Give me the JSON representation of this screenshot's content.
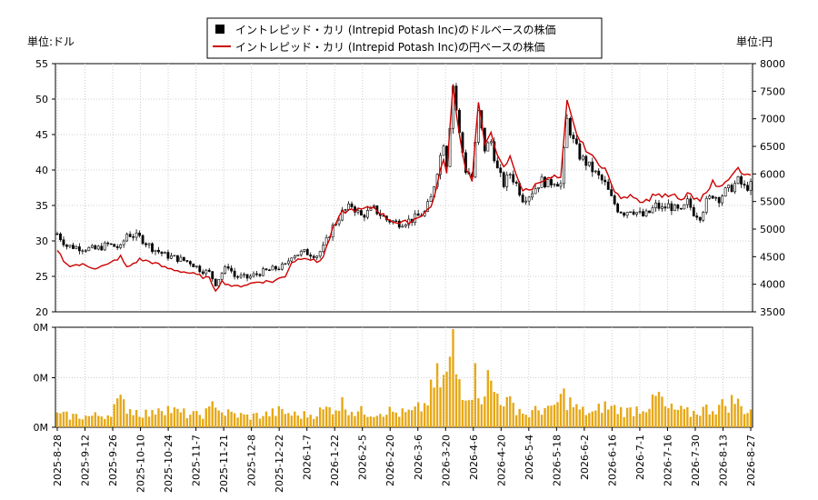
{
  "legend": {
    "items": [
      {
        "label": "イントレピッド・カリ (Intrepid Potash Inc)のドルベースの株価",
        "color": "#000000",
        "marker": "square"
      },
      {
        "label": "イントレピッド・カリ (Intrepid Potash Inc)の円ベースの株価",
        "color": "#cc0000",
        "marker": "line"
      }
    ]
  },
  "chart_data": [
    {
      "type": "line",
      "title": "",
      "left_unit_label": "単位:ドル",
      "right_unit_label": "単位:円",
      "grid": true,
      "legend_position": "top-center",
      "x_tick_labels": [
        "2025-8-28",
        "2025-9-12",
        "2025-9-26",
        "2025-10-10",
        "2025-10-24",
        "2025-11-7",
        "2025-11-21",
        "2025-12-8",
        "2025-12-22",
        "2026-1-7",
        "2026-1-22",
        "2026-2-5",
        "2026-2-20",
        "2026-3-6",
        "2026-3-20",
        "2026-4-6",
        "2026-4-20",
        "2026-5-4",
        "2026-5-18",
        "2026-6-2",
        "2026-6-16",
        "2026-7-1",
        "2026-7-16",
        "2026-7-30",
        "2026-8-13",
        "2026-8-27"
      ],
      "y_left_range": [
        20,
        55
      ],
      "y_left_ticks": [
        "20",
        "25",
        "30",
        "35",
        "40",
        "45",
        "50",
        "55"
      ],
      "y_right_range": [
        3500,
        8000
      ],
      "y_right_ticks": [
        "3500",
        "4000",
        "4500",
        "5000",
        "5500",
        "6000",
        "6500",
        "7000",
        "7500",
        "8000"
      ],
      "series": [
        {
          "color": "#000000",
          "style": "candlestick",
          "axis": "left",
          "keypoints": [
            [
              0,
              31
            ],
            [
              3,
              29.3
            ],
            [
              8,
              29
            ],
            [
              12,
              28.8
            ],
            [
              16,
              29.5
            ],
            [
              20,
              29
            ],
            [
              22,
              31
            ],
            [
              26,
              30.5
            ],
            [
              30,
              29
            ],
            [
              34,
              28
            ],
            [
              38,
              27.5
            ],
            [
              42,
              27
            ],
            [
              45,
              26
            ],
            [
              48,
              25.5
            ],
            [
              50,
              24
            ],
            [
              52,
              25.5
            ],
            [
              54,
              26.5
            ],
            [
              56,
              25
            ],
            [
              60,
              24.8
            ],
            [
              64,
              25.5
            ],
            [
              68,
              26
            ],
            [
              72,
              26.5
            ],
            [
              74,
              28
            ],
            [
              78,
              28.4
            ],
            [
              82,
              28
            ],
            [
              84,
              29
            ],
            [
              87,
              32
            ],
            [
              90,
              34
            ],
            [
              93,
              35
            ],
            [
              96,
              33.5
            ],
            [
              100,
              34.5
            ],
            [
              104,
              33
            ],
            [
              108,
              32.5
            ],
            [
              112,
              33
            ],
            [
              116,
              34
            ],
            [
              118,
              36
            ],
            [
              120,
              40
            ],
            [
              122,
              44
            ],
            [
              123,
              41
            ],
            [
              125,
              52
            ],
            [
              127,
              45
            ],
            [
              129,
              40
            ],
            [
              131,
              39
            ],
            [
              133,
              48
            ],
            [
              135,
              43
            ],
            [
              137,
              44
            ],
            [
              139,
              40
            ],
            [
              141,
              38
            ],
            [
              143,
              39.5
            ],
            [
              145,
              38
            ],
            [
              147,
              36
            ],
            [
              149,
              36.5
            ],
            [
              151,
              37.5
            ],
            [
              153,
              38.5
            ],
            [
              155,
              38
            ],
            [
              157,
              38.5
            ],
            [
              159,
              38
            ],
            [
              161,
              47
            ],
            [
              163,
              44
            ],
            [
              165,
              42
            ],
            [
              167,
              41
            ],
            [
              169,
              40
            ],
            [
              171,
              39
            ],
            [
              173,
              38
            ],
            [
              175,
              36
            ],
            [
              177,
              34.5
            ],
            [
              179,
              34
            ],
            [
              181,
              34.5
            ],
            [
              183,
              34
            ],
            [
              185,
              33.5
            ],
            [
              187,
              34
            ],
            [
              189,
              35
            ],
            [
              191,
              34.5
            ],
            [
              193,
              35
            ],
            [
              195,
              34.5
            ],
            [
              197,
              34
            ],
            [
              199,
              35.5
            ],
            [
              201,
              34
            ],
            [
              203,
              33.5
            ],
            [
              205,
              35.5
            ],
            [
              207,
              36.5
            ],
            [
              209,
              36
            ],
            [
              211,
              37
            ],
            [
              213,
              37.5
            ],
            [
              215,
              38.5
            ],
            [
              217,
              37.5
            ],
            [
              219,
              37.8
            ]
          ]
        },
        {
          "color": "#cc0000",
          "style": "line",
          "axis": "right",
          "keypoints": [
            [
              0,
              4600
            ],
            [
              3,
              4350
            ],
            [
              8,
              4350
            ],
            [
              12,
              4300
            ],
            [
              16,
              4350
            ],
            [
              20,
              4500
            ],
            [
              22,
              4300
            ],
            [
              26,
              4450
            ],
            [
              30,
              4400
            ],
            [
              34,
              4300
            ],
            [
              38,
              4250
            ],
            [
              42,
              4200
            ],
            [
              45,
              4150
            ],
            [
              48,
              4100
            ],
            [
              50,
              3900
            ],
            [
              52,
              4050
            ],
            [
              54,
              4000
            ],
            [
              56,
              3950
            ],
            [
              60,
              4000
            ],
            [
              64,
              4050
            ],
            [
              68,
              4050
            ],
            [
              72,
              4150
            ],
            [
              74,
              4400
            ],
            [
              78,
              4500
            ],
            [
              82,
              4400
            ],
            [
              84,
              4500
            ],
            [
              87,
              5000
            ],
            [
              90,
              5300
            ],
            [
              93,
              5350
            ],
            [
              96,
              5350
            ],
            [
              100,
              5400
            ],
            [
              104,
              5200
            ],
            [
              108,
              5100
            ],
            [
              112,
              5150
            ],
            [
              116,
              5300
            ],
            [
              118,
              5400
            ],
            [
              120,
              5800
            ],
            [
              122,
              6300
            ],
            [
              123,
              6000
            ],
            [
              125,
              7600
            ],
            [
              127,
              6700
            ],
            [
              129,
              6100
            ],
            [
              131,
              5900
            ],
            [
              133,
              7300
            ],
            [
              135,
              6500
            ],
            [
              137,
              6800
            ],
            [
              139,
              6300
            ],
            [
              141,
              6100
            ],
            [
              143,
              6300
            ],
            [
              145,
              6000
            ],
            [
              147,
              5700
            ],
            [
              149,
              5700
            ],
            [
              151,
              5800
            ],
            [
              153,
              5900
            ],
            [
              155,
              5900
            ],
            [
              157,
              5950
            ],
            [
              159,
              5900
            ],
            [
              161,
              7300
            ],
            [
              163,
              6900
            ],
            [
              165,
              6600
            ],
            [
              167,
              6450
            ],
            [
              169,
              6300
            ],
            [
              171,
              6200
            ],
            [
              173,
              6100
            ],
            [
              175,
              5800
            ],
            [
              177,
              5600
            ],
            [
              179,
              5550
            ],
            [
              181,
              5650
            ],
            [
              183,
              5550
            ],
            [
              185,
              5500
            ],
            [
              187,
              5550
            ],
            [
              189,
              5650
            ],
            [
              191,
              5600
            ],
            [
              193,
              5600
            ],
            [
              195,
              5600
            ],
            [
              197,
              5500
            ],
            [
              199,
              5650
            ],
            [
              201,
              5550
            ],
            [
              203,
              5500
            ],
            [
              205,
              5700
            ],
            [
              207,
              5850
            ],
            [
              209,
              5750
            ],
            [
              211,
              5900
            ],
            [
              213,
              5950
            ],
            [
              215,
              6100
            ],
            [
              217,
              5950
            ],
            [
              219,
              6000
            ]
          ]
        }
      ]
    },
    {
      "type": "bar",
      "title": "",
      "grid": true,
      "y_tick_labels": [
        "0M",
        "0M",
        "0M"
      ],
      "series": [
        {
          "color": "#e6a817",
          "keypoints": [
            [
              0,
              0.12
            ],
            [
              10,
              0.11
            ],
            [
              16,
              0.13
            ],
            [
              18,
              0.22
            ],
            [
              20,
              0.25
            ],
            [
              24,
              0.17
            ],
            [
              30,
              0.13
            ],
            [
              32,
              0.23
            ],
            [
              38,
              0.15
            ],
            [
              44,
              0.12
            ],
            [
              48,
              0.16
            ],
            [
              50,
              0.28
            ],
            [
              52,
              0.15
            ],
            [
              60,
              0.11
            ],
            [
              66,
              0.13
            ],
            [
              70,
              0.16
            ],
            [
              76,
              0.12
            ],
            [
              80,
              0.13
            ],
            [
              84,
              0.17
            ],
            [
              88,
              0.21
            ],
            [
              90,
              0.24
            ],
            [
              94,
              0.16
            ],
            [
              100,
              0.15
            ],
            [
              104,
              0.17
            ],
            [
              108,
              0.14
            ],
            [
              112,
              0.15
            ],
            [
              116,
              0.22
            ],
            [
              120,
              0.48
            ],
            [
              122,
              0.46
            ],
            [
              124,
              0.62
            ],
            [
              125,
              0.88
            ],
            [
              126,
              0.55
            ],
            [
              128,
              0.42
            ],
            [
              130,
              0.37
            ],
            [
              132,
              0.5
            ],
            [
              134,
              0.34
            ],
            [
              136,
              0.48
            ],
            [
              138,
              0.36
            ],
            [
              140,
              0.32
            ],
            [
              142,
              0.25
            ],
            [
              144,
              0.22
            ],
            [
              146,
              0.19
            ],
            [
              148,
              0.12
            ],
            [
              150,
              0.15
            ],
            [
              154,
              0.2
            ],
            [
              156,
              0.16
            ],
            [
              158,
              0.26
            ],
            [
              160,
              0.32
            ],
            [
              162,
              0.25
            ],
            [
              164,
              0.19
            ],
            [
              166,
              0.16
            ],
            [
              170,
              0.14
            ],
            [
              172,
              0.22
            ],
            [
              176,
              0.19
            ],
            [
              180,
              0.16
            ],
            [
              184,
              0.2
            ],
            [
              188,
              0.24
            ],
            [
              190,
              0.33
            ],
            [
              192,
              0.19
            ],
            [
              196,
              0.17
            ],
            [
              200,
              0.14
            ],
            [
              204,
              0.18
            ],
            [
              208,
              0.2
            ],
            [
              212,
              0.24
            ],
            [
              214,
              0.28
            ],
            [
              216,
              0.2
            ],
            [
              219,
              0.17
            ]
          ]
        }
      ]
    }
  ]
}
